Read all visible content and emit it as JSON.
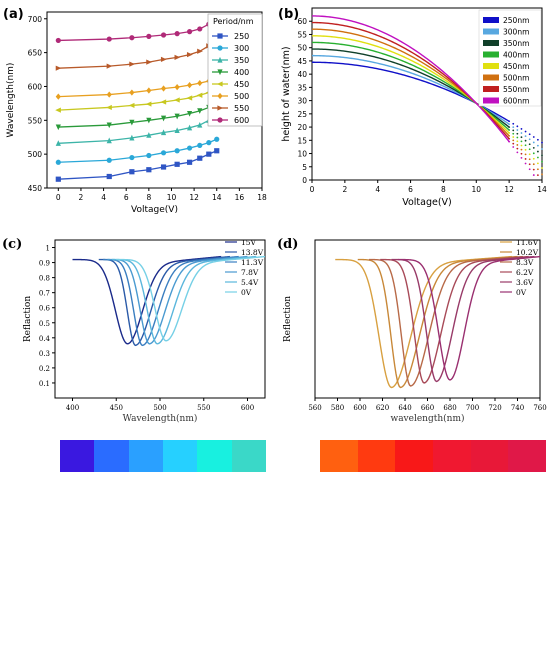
{
  "chart_data": [
    {
      "panel": "(a)",
      "type": "line",
      "xlabel": "Voltage(V)",
      "ylabel": "Wavelength(nm)",
      "xlim": [
        -1,
        18
      ],
      "ylim": [
        450,
        710
      ],
      "xticks": [
        0,
        2,
        4,
        6,
        8,
        10,
        12,
        14,
        16,
        18
      ],
      "yticks": [
        450,
        500,
        550,
        600,
        650,
        700
      ],
      "legend_title": "Period/nm",
      "legend_position": "top-right",
      "x": [
        0,
        4.5,
        6.5,
        8,
        9.3,
        10.5,
        11.6,
        12.5,
        13.3,
        14
      ],
      "series": [
        {
          "name": "250",
          "color": "#2f55c4",
          "marker": "s",
          "values": [
            463,
            467,
            474,
            477,
            481,
            485,
            488,
            494,
            500,
            505
          ]
        },
        {
          "name": "300",
          "color": "#2aa8d8",
          "marker": "o",
          "values": [
            488,
            491,
            495,
            498,
            502,
            505,
            509,
            513,
            517,
            522
          ]
        },
        {
          "name": "350",
          "color": "#3cb4a8",
          "marker": "^",
          "values": [
            516,
            520,
            524,
            528,
            532,
            535,
            539,
            543,
            550,
            558
          ]
        },
        {
          "name": "400",
          "color": "#2a9a3a",
          "marker": "v",
          "values": [
            540,
            543,
            547,
            550,
            553,
            556,
            560,
            564,
            569,
            575
          ]
        },
        {
          "name": "450",
          "color": "#c8c820",
          "marker": "<",
          "values": [
            565,
            569,
            572,
            574,
            577,
            580,
            583,
            587,
            591,
            597
          ]
        },
        {
          "name": "500",
          "color": "#e8a020",
          "marker": "D",
          "values": [
            585,
            588,
            591,
            594,
            597,
            599,
            602,
            605,
            608,
            612
          ]
        },
        {
          "name": "550",
          "color": "#b85a2a",
          "marker": ">",
          "values": [
            627,
            630,
            633,
            636,
            640,
            643,
            647,
            652,
            660,
            672
          ]
        },
        {
          "name": "600",
          "color": "#b02a78",
          "marker": "o",
          "values": [
            668,
            670,
            672,
            674,
            676,
            678,
            681,
            685,
            692,
            702
          ]
        }
      ]
    },
    {
      "panel": "(b)",
      "type": "line",
      "xlabel": "Voltage(V)",
      "ylabel": "height of water(nm)",
      "xlim": [
        0,
        14
      ],
      "ylim": [
        0,
        65
      ],
      "xticks": [
        0,
        2,
        4,
        6,
        8,
        10,
        12,
        14
      ],
      "yticks": [
        0,
        5,
        10,
        15,
        20,
        25,
        30,
        35,
        40,
        45,
        50,
        55,
        60
      ],
      "legend_position": "top-right",
      "solid_until": 12,
      "series": [
        {
          "name": "250nm",
          "color": "#1010c8",
          "h0": 44.5
        },
        {
          "name": "300nm",
          "color": "#58a8e0",
          "h0": 47
        },
        {
          "name": "350nm",
          "color": "#10402a",
          "h0": 49.5
        },
        {
          "name": "400nm",
          "color": "#28b030",
          "h0": 52
        },
        {
          "name": "450nm",
          "color": "#e0e010",
          "h0": 54.5
        },
        {
          "name": "500nm",
          "color": "#d07010",
          "h0": 57
        },
        {
          "name": "550nm",
          "color": "#c02020",
          "h0": 59.5
        },
        {
          "name": "600nm",
          "color": "#c010c0",
          "h0": 62
        }
      ],
      "crossing": {
        "x": 10,
        "y": 29
      }
    },
    {
      "panel": "(c)",
      "type": "line",
      "xlabel": "Wavelength(nm)",
      "ylabel": "Reflaction",
      "xlim": [
        380,
        620
      ],
      "ylim": [
        0.0,
        1.05
      ],
      "xticks": [
        400,
        450,
        500,
        550,
        600
      ],
      "yticks": [
        0.1,
        0.2,
        0.3,
        0.4,
        0.5,
        0.6,
        0.7,
        0.8,
        0.9,
        1.0
      ],
      "legend_position": "top-right",
      "series": [
        {
          "name": "15V",
          "color": "#1a2a8a",
          "min_x": 463,
          "min_y": 0.36,
          "start_x": 400,
          "end_x": 570
        },
        {
          "name": "13.8V",
          "color": "#2a5aa8",
          "min_x": 472,
          "min_y": 0.35,
          "start_x": 430,
          "end_x": 580
        },
        {
          "name": "11.3V",
          "color": "#3a7ec0",
          "min_x": 480,
          "min_y": 0.35,
          "start_x": 435,
          "end_x": 590
        },
        {
          "name": "7.8V",
          "color": "#4a9ad0",
          "min_x": 488,
          "min_y": 0.36,
          "start_x": 440,
          "end_x": 600
        },
        {
          "name": "5.4V",
          "color": "#5ab6dc",
          "min_x": 497,
          "min_y": 0.36,
          "start_x": 445,
          "end_x": 610
        },
        {
          "name": "0V",
          "color": "#76d0e6",
          "min_x": 507,
          "min_y": 0.38,
          "start_x": 450,
          "end_x": 620
        }
      ],
      "color_strip": [
        "#3a18e0",
        "#2a6cff",
        "#2aa0ff",
        "#26d0ff",
        "#18f0e0",
        "#3ad8c8"
      ]
    },
    {
      "panel": "(d)",
      "type": "line",
      "xlabel": "wavelength(nm)",
      "ylabel": "Reflection",
      "xlim": [
        560,
        760
      ],
      "ylim": [
        0.0,
        1.05
      ],
      "xticks": [
        560,
        580,
        600,
        620,
        640,
        660,
        680,
        700,
        720,
        740,
        760
      ],
      "yticks": [],
      "legend_position": "top-right",
      "series": [
        {
          "name": "11.6V",
          "color": "#d8a040",
          "min_x": 628,
          "min_y": 0.07,
          "start_x": 578,
          "end_x": 735
        },
        {
          "name": "10.2V",
          "color": "#c88838",
          "min_x": 636,
          "min_y": 0.07,
          "start_x": 598,
          "end_x": 740
        },
        {
          "name": "8.3V",
          "color": "#b86a48",
          "min_x": 645,
          "min_y": 0.08,
          "start_x": 608,
          "end_x": 745
        },
        {
          "name": "6.2V",
          "color": "#a84a58",
          "min_x": 657,
          "min_y": 0.1,
          "start_x": 618,
          "end_x": 750
        },
        {
          "name": "3.6V",
          "color": "#983a68",
          "min_x": 668,
          "min_y": 0.11,
          "start_x": 628,
          "end_x": 755
        },
        {
          "name": "0V",
          "color": "#9a3070",
          "min_x": 680,
          "min_y": 0.12,
          "start_x": 634,
          "end_x": 760
        }
      ],
      "color_strip": [
        "#ff6010",
        "#ff3a10",
        "#f81818",
        "#f01830",
        "#e81838",
        "#e01848"
      ]
    }
  ]
}
